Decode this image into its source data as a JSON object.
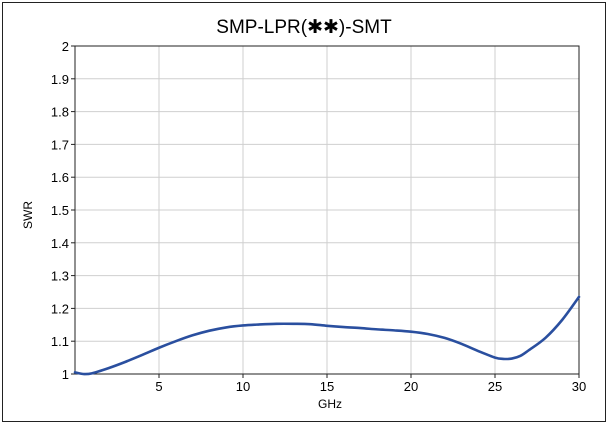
{
  "chart_data": {
    "type": "line",
    "title": "SMP-LPR(✱✱)-SMT",
    "xlabel": "GHz",
    "ylabel": "SWR",
    "xlim": [
      0,
      30
    ],
    "ylim": [
      1,
      2
    ],
    "x_ticks": [
      5,
      10,
      15,
      20,
      25,
      30
    ],
    "x_tick_labels": [
      "5",
      "10",
      "15",
      "20",
      "25",
      "30"
    ],
    "y_ticks": [
      1,
      1.1,
      1.2,
      1.3,
      1.4,
      1.5,
      1.6,
      1.7,
      1.8,
      1.9,
      2
    ],
    "y_tick_labels": [
      "1",
      "1.1",
      "1.2",
      "1.3",
      "1.4",
      "1.5",
      "1.6",
      "1.7",
      "1.8",
      "1.9",
      "2"
    ],
    "grid": true,
    "series_color": "#2a4f9f",
    "series": [
      {
        "x": [
          0,
          0.5,
          1,
          2,
          3,
          4,
          5,
          6,
          7,
          8,
          9,
          10,
          11,
          12,
          13,
          14,
          15,
          16,
          17,
          18,
          19,
          20,
          21,
          22,
          23,
          24,
          25,
          25.5,
          26,
          26.5,
          27,
          28,
          29,
          30
        ],
        "values": [
          1.005,
          1.0,
          1.002,
          1.018,
          1.037,
          1.058,
          1.08,
          1.1,
          1.118,
          1.132,
          1.142,
          1.148,
          1.151,
          1.153,
          1.153,
          1.152,
          1.147,
          1.143,
          1.14,
          1.136,
          1.133,
          1.129,
          1.122,
          1.11,
          1.092,
          1.07,
          1.05,
          1.046,
          1.047,
          1.055,
          1.072,
          1.11,
          1.165,
          1.235
        ]
      }
    ]
  }
}
